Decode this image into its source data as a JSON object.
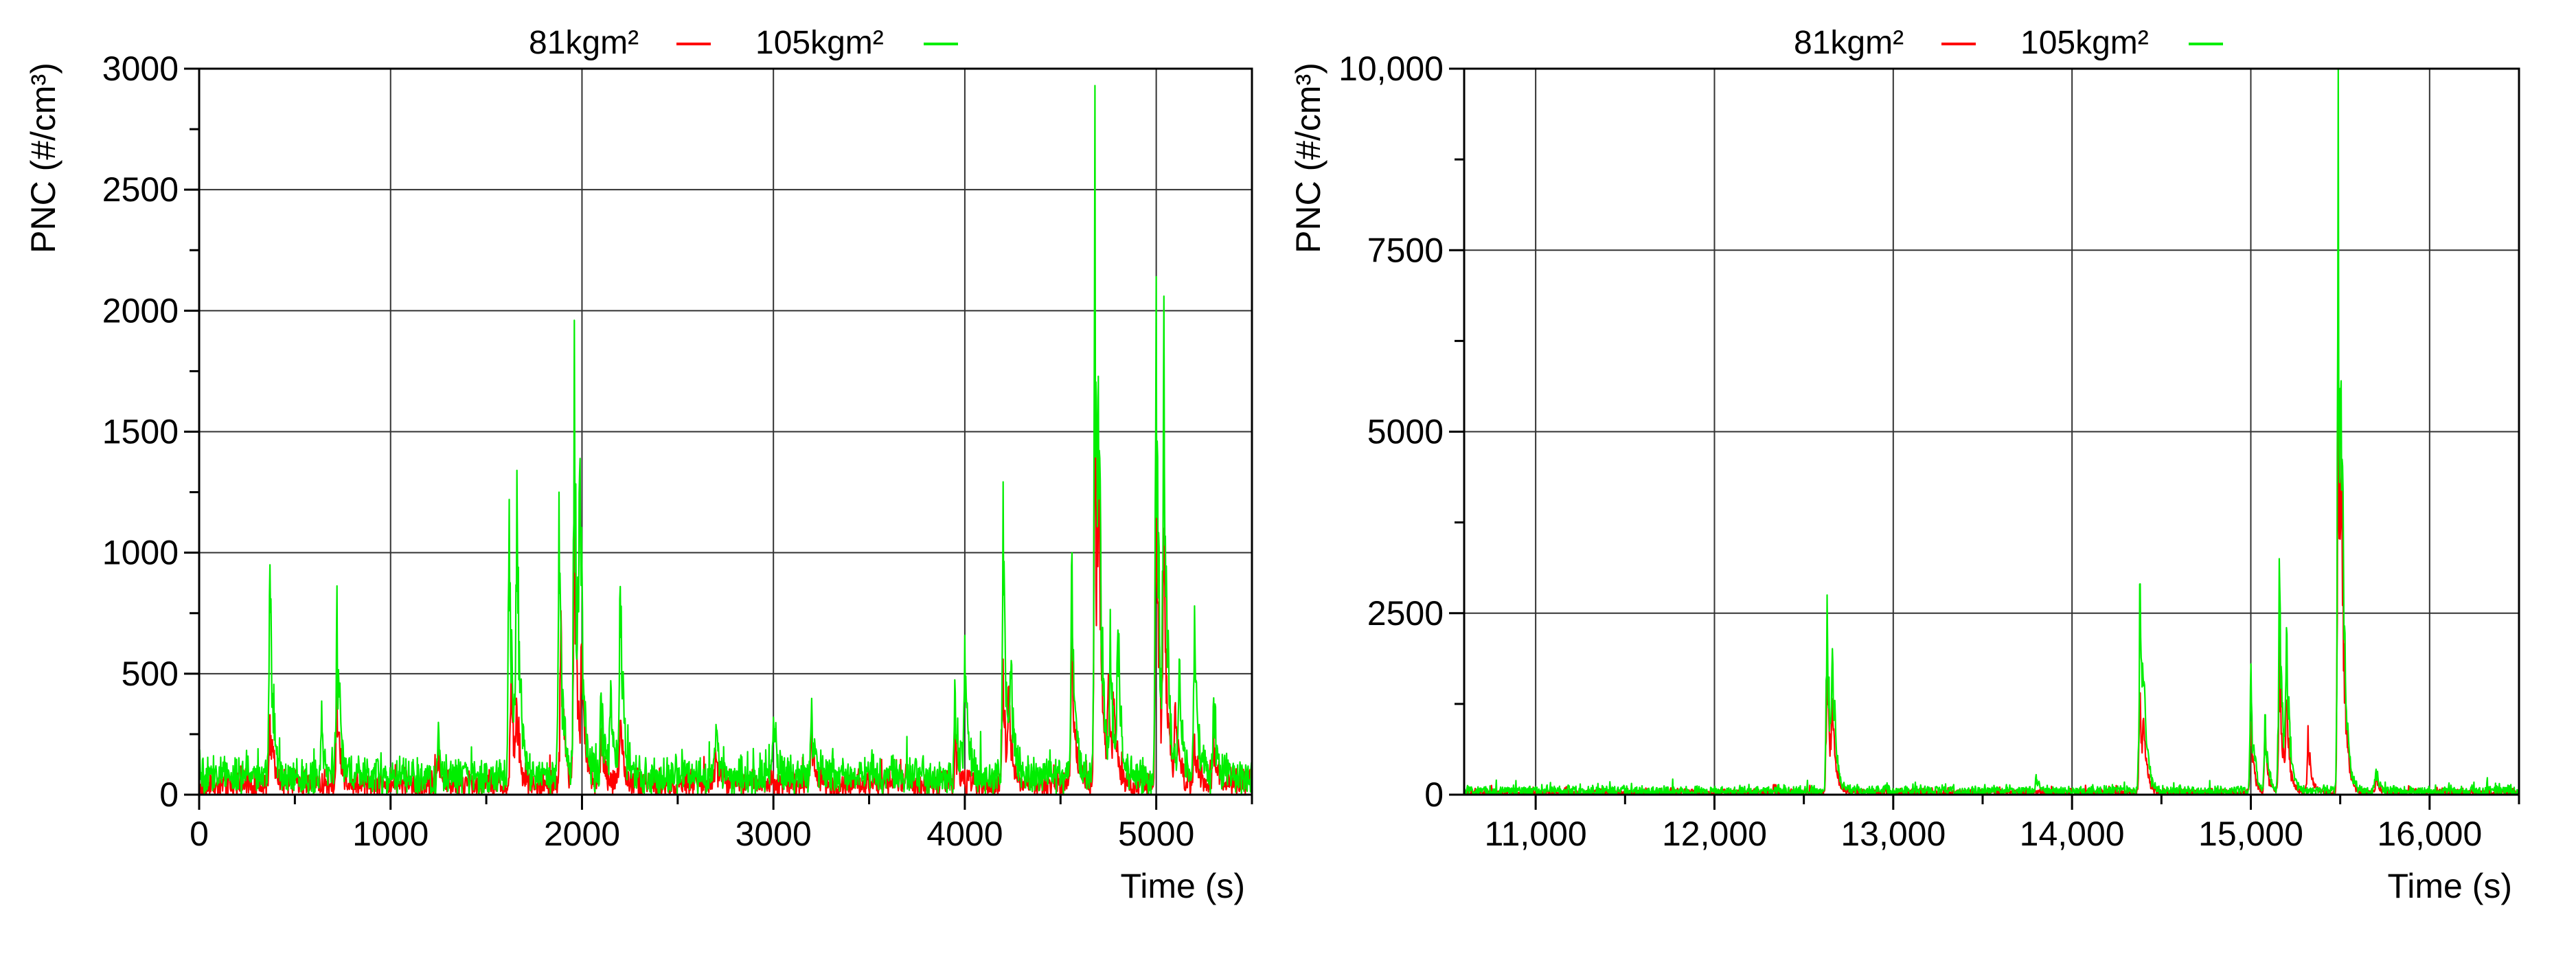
{
  "chart_data": [
    {
      "type": "line",
      "title": "",
      "xlabel": "Time (s)",
      "ylabel": "PNC (#/cm³)",
      "xlim": [
        0,
        5500
      ],
      "ylim": [
        0,
        3000
      ],
      "x_ticks": [
        0,
        1000,
        2000,
        3000,
        4000,
        5000
      ],
      "x_tick_labels": [
        "0",
        "1000",
        "2000",
        "3000",
        "4000",
        "5000"
      ],
      "y_ticks": [
        0,
        500,
        1000,
        1500,
        2000,
        2500,
        3000
      ],
      "y_tick_labels": [
        "0",
        "500",
        "1000",
        "1500",
        "2000",
        "2500",
        "3000"
      ],
      "grid": true,
      "legend_position": "top",
      "series": [
        {
          "name": "81kgm²",
          "color": "#ff0000",
          "baseline": 45,
          "noise": 45,
          "events": [
            [
              370,
              330
            ],
            [
              720,
              420
            ],
            [
              1250,
              150
            ],
            [
              1630,
              500
            ],
            [
              1660,
              260
            ],
            [
              1890,
              760
            ],
            [
              1960,
              1280
            ],
            [
              2000,
              600
            ],
            [
              2100,
              260
            ],
            [
              2200,
              300
            ],
            [
              2700,
              150
            ],
            [
              3200,
              250
            ],
            [
              3950,
              220
            ],
            [
              4200,
              560
            ],
            [
              4230,
              400
            ],
            [
              4560,
              700
            ],
            [
              4680,
              1960
            ],
            [
              4700,
              900
            ],
            [
              4750,
              450
            ],
            [
              4780,
              350
            ],
            [
              5000,
              1500
            ],
            [
              5040,
              1100
            ],
            [
              5100,
              380
            ],
            [
              5200,
              250
            ],
            [
              5300,
              180
            ]
          ]
        },
        {
          "name": "105kgm²",
          "color": "#00ee00",
          "baseline": 75,
          "noise": 60,
          "events": [
            [
              370,
              950
            ],
            [
              720,
              860
            ],
            [
              640,
              280
            ],
            [
              1250,
              230
            ],
            [
              1620,
              1220
            ],
            [
              1660,
              1340
            ],
            [
              1880,
              1250
            ],
            [
              1960,
              1960
            ],
            [
              1990,
              1330
            ],
            [
              2100,
              420
            ],
            [
              2150,
              380
            ],
            [
              2200,
              860
            ],
            [
              2700,
              290
            ],
            [
              3000,
              320
            ],
            [
              3200,
              330
            ],
            [
              3950,
              420
            ],
            [
              4000,
              650
            ],
            [
              4200,
              1280
            ],
            [
              4240,
              480
            ],
            [
              4560,
              1000
            ],
            [
              4680,
              2930
            ],
            [
              4700,
              1050
            ],
            [
              4760,
              720
            ],
            [
              4800,
              680
            ],
            [
              5000,
              2140
            ],
            [
              5040,
              2060
            ],
            [
              5120,
              520
            ],
            [
              5200,
              780
            ],
            [
              5300,
              400
            ]
          ]
        }
      ]
    },
    {
      "type": "line",
      "title": "",
      "xlabel": "Time (s)",
      "ylabel": "PNC (#/cm³)",
      "xlim": [
        10600,
        16500
      ],
      "ylim": [
        0,
        10000
      ],
      "x_ticks": [
        11000,
        12000,
        13000,
        14000,
        15000,
        16000
      ],
      "x_tick_labels": [
        "11,000",
        "12,000",
        "13,000",
        "14,000",
        "15,000",
        "16,000"
      ],
      "y_ticks": [
        0,
        2500,
        5000,
        7500,
        10000
      ],
      "y_tick_labels": [
        "0",
        "2500",
        "5000",
        "7500",
        "10,000"
      ],
      "grid": true,
      "legend_position": "top",
      "series": [
        {
          "name": "81kgm²",
          "color": "#ff0000",
          "baseline": 30,
          "noise": 40,
          "events": [
            [
              12630,
              2000
            ],
            [
              12660,
              1200
            ],
            [
              14380,
              1400
            ],
            [
              14400,
              800
            ],
            [
              15000,
              1000
            ],
            [
              15080,
              900
            ],
            [
              15160,
              2200
            ],
            [
              15200,
              1300
            ],
            [
              15320,
              950
            ],
            [
              15490,
              7450
            ],
            [
              15510,
              1900
            ],
            [
              15700,
              300
            ]
          ]
        },
        {
          "name": "105kgm²",
          "color": "#00ee00",
          "baseline": 50,
          "noise": 60,
          "events": [
            [
              12630,
              2750
            ],
            [
              12660,
              2000
            ],
            [
              13800,
              220
            ],
            [
              14380,
              2900
            ],
            [
              14400,
              1500
            ],
            [
              15000,
              1800
            ],
            [
              15080,
              1100
            ],
            [
              15160,
              3250
            ],
            [
              15200,
              2300
            ],
            [
              15490,
              10000
            ],
            [
              15510,
              2500
            ],
            [
              15700,
              350
            ]
          ]
        }
      ]
    }
  ]
}
